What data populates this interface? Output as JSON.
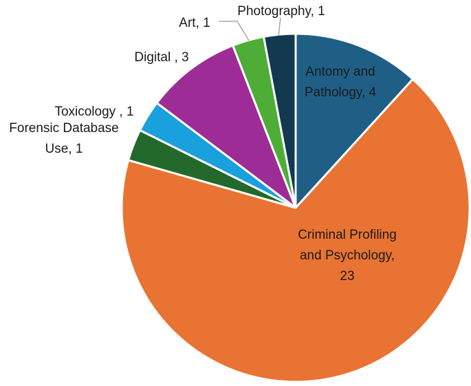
{
  "chart_data": {
    "type": "pie",
    "title": "",
    "slices": [
      {
        "name": "Antomy and Pathology",
        "value": 4,
        "color": "#1f5f86",
        "label_lines": [
          "Antomy and",
          "Pathology, 4"
        ]
      },
      {
        "name": "Criminal Profiling and Psychology",
        "value": 23,
        "color": "#e97332",
        "label_lines": [
          "Criminal Profiling",
          "and Psychology,",
          "23"
        ]
      },
      {
        "name": "Forensic Database Use",
        "value": 1,
        "color": "#23692b",
        "label_lines": [
          "Forensic Database",
          "Use, 1"
        ]
      },
      {
        "name": "Toxicology",
        "value": 1,
        "color": "#1aa0dc",
        "label_lines": [
          "Toxicology , 1"
        ]
      },
      {
        "name": "Digital",
        "value": 3,
        "color": "#9e2c96",
        "label_lines": [
          "Digital , 3"
        ]
      },
      {
        "name": "Art",
        "value": 1,
        "color": "#4ead37",
        "label_lines": [
          "Art, 1"
        ]
      },
      {
        "name": "Photography",
        "value": 1,
        "color": "#133950",
        "label_lines": [
          "Photography, 1"
        ]
      }
    ]
  }
}
